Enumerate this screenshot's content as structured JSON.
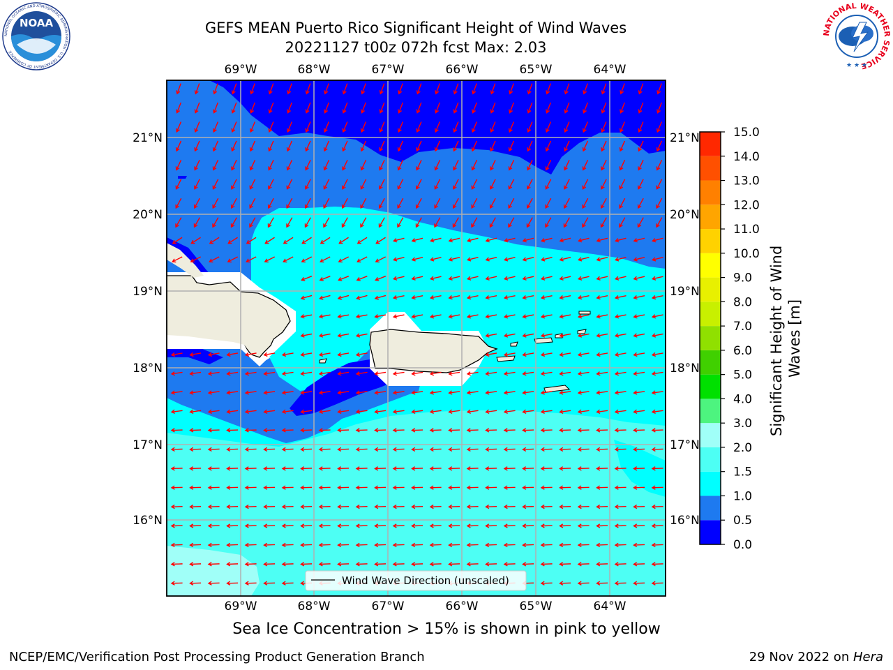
{
  "header": {
    "title_line1": "GEFS MEAN Puerto Rico Significant Height of Wind Waves",
    "title_line2": "20221127 t00z 072h fcst   Max: 2.03"
  },
  "logos": {
    "left": "noaa-logo",
    "left_text": "NOAA",
    "left_ring_text": "NATIONAL OCEANIC AND ATMOSPHERIC ADMINISTRATION · U.S. DEPARTMENT OF COMMERCE",
    "right": "nws-logo",
    "right_ring_text": "NATIONAL WEATHER SERVICE"
  },
  "map": {
    "lon_labels": [
      "69°W",
      "68°W",
      "67°W",
      "66°W",
      "65°W",
      "64°W"
    ],
    "lat_labels": [
      "21°N",
      "20°N",
      "19°N",
      "18°N",
      "17°N",
      "16°N"
    ],
    "legend_label": "Wind Wave Direction (unscaled)",
    "arrow_color": "#ff0000",
    "land_color": "#efedde",
    "grid_color": "#b0b0b0"
  },
  "colorbar": {
    "title": "Significant Height of Wind Waves [m]",
    "title_line1": "Significant Height of Wind",
    "title_line2": "Waves [m]",
    "ticks": [
      "0.0",
      "0.5",
      "1.0",
      "1.5",
      "2.0",
      "3.0",
      "4.0",
      "5.0",
      "6.0",
      "7.0",
      "8.0",
      "9.0",
      "10.0",
      "11.0",
      "12.0",
      "13.0",
      "14.0",
      "15.0"
    ],
    "colors": [
      "#0000ff",
      "#1e7af0",
      "#00ffff",
      "#4dfff4",
      "#a0fff8",
      "#4df47f",
      "#00e000",
      "#40d000",
      "#90e000",
      "#c8f000",
      "#e8f000",
      "#ffff00",
      "#ffd200",
      "#ffa500",
      "#ff8000",
      "#ff5000",
      "#ff2800",
      "#ff0000"
    ]
  },
  "footer": {
    "note": "Sea Ice Concentration > 15% is shown in pink to yellow",
    "left": "NCEP/EMC/Verification Post Processing Product Generation Branch",
    "date": "29 Nov 2022 on ",
    "host": "Hera"
  }
}
